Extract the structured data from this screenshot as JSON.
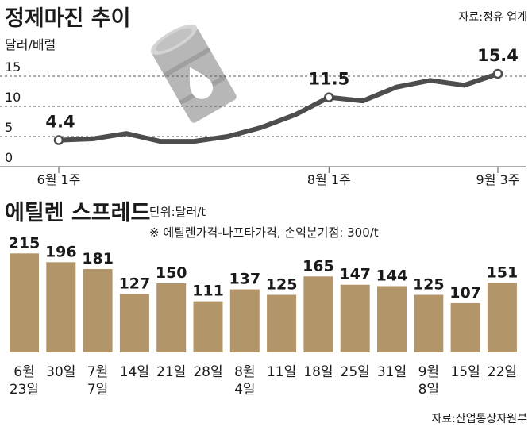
{
  "chart_data": [
    {
      "type": "line",
      "title": "정제마진 추이",
      "ylabel": "달러/배럴",
      "source": "자료:정유 업계",
      "ylim": [
        0,
        17
      ],
      "yticks": [
        0,
        5,
        10,
        15
      ],
      "x_labels": [
        "6월 1주",
        "8월 1주",
        "9월 3주"
      ],
      "series": [
        {
          "values": [
            4.4,
            4.6,
            5.5,
            4.2,
            4.2,
            5.0,
            6.5,
            8.6,
            11.5,
            10.9,
            13.2,
            14.3,
            13.5,
            15.4
          ]
        }
      ],
      "labeled_points": [
        {
          "index": 0,
          "label": "4.4"
        },
        {
          "index": 8,
          "label": "11.5"
        },
        {
          "index": 13,
          "label": "15.4"
        }
      ],
      "grid": "dashed horizontal",
      "line_color": "#4d4d4d",
      "point_color": "#4d4d4d"
    },
    {
      "type": "bar",
      "title": "에틸렌 스프레드",
      "unit": "단위:달러/t",
      "note": "※ 에틸렌가격-나프타가격, 손익분기점: 300/t",
      "source": "자료:산업통상자원부",
      "categories": [
        [
          "6월",
          "23일"
        ],
        [
          "30일"
        ],
        [
          "7월",
          "7일"
        ],
        [
          "14일"
        ],
        [
          "21일"
        ],
        [
          "28일"
        ],
        [
          "8월",
          "4일"
        ],
        [
          "11일"
        ],
        [
          "18일"
        ],
        [
          "25일"
        ],
        [
          "31일"
        ],
        [
          "9월",
          "8일"
        ],
        [
          "15일"
        ],
        [
          "22일"
        ]
      ],
      "values": [
        215,
        196,
        181,
        127,
        150,
        111,
        137,
        125,
        165,
        147,
        144,
        125,
        107,
        151
      ],
      "ylim": [
        0,
        230
      ],
      "bar_color": "#b3956a"
    }
  ],
  "icons": {
    "barrel": "oil-barrel-icon"
  }
}
